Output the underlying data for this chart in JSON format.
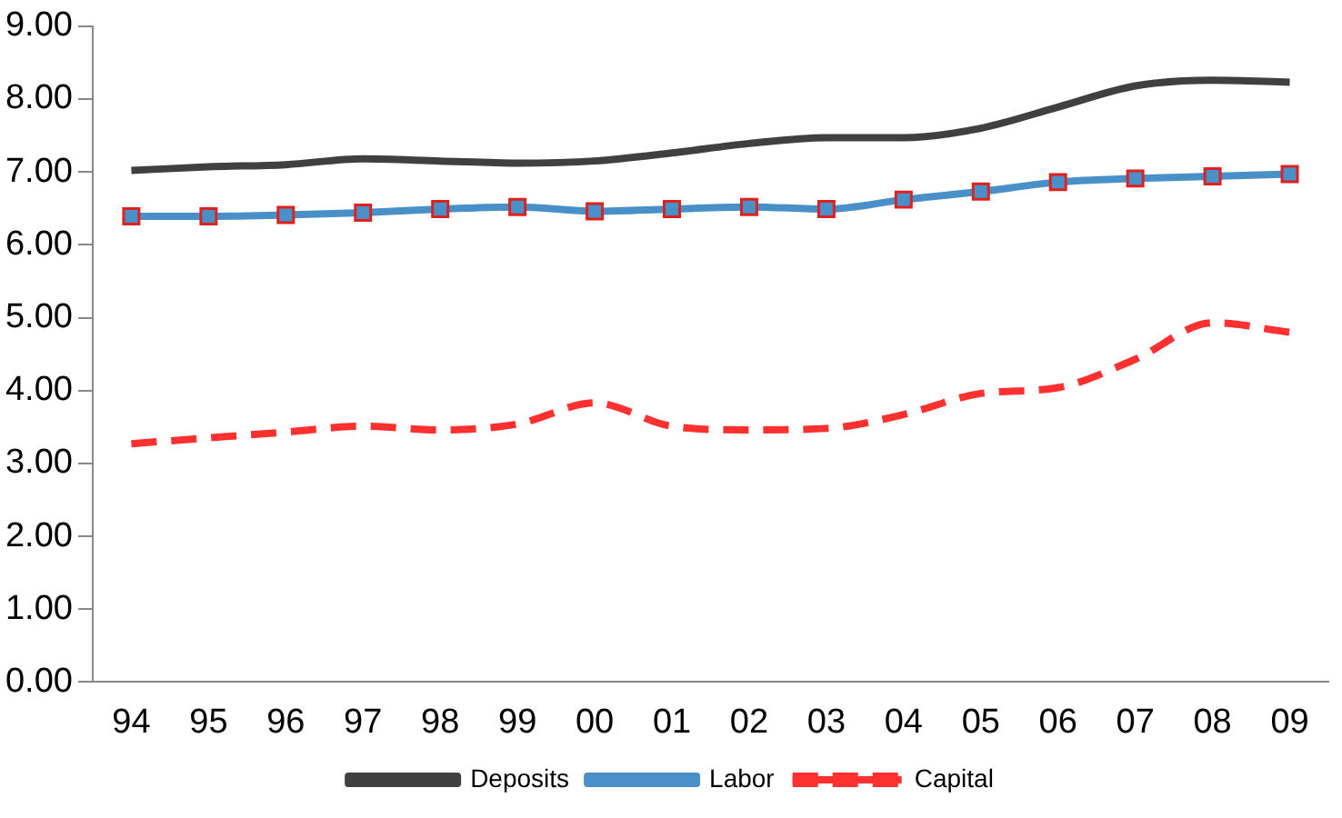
{
  "chart_data": {
    "type": "line",
    "categories": [
      "94",
      "95",
      "96",
      "97",
      "98",
      "99",
      "00",
      "01",
      "02",
      "03",
      "04",
      "05",
      "06",
      "07",
      "08",
      "09"
    ],
    "series": [
      {
        "name": "Deposits",
        "color": "#404040",
        "line_style": "solid",
        "marker": "none",
        "values": [
          7.02,
          7.07,
          7.1,
          7.18,
          7.15,
          7.12,
          7.15,
          7.26,
          7.39,
          7.47,
          7.47,
          7.6,
          7.89,
          8.18,
          8.26,
          8.23
        ]
      },
      {
        "name": "Labor",
        "color": "#4a90c8",
        "line_style": "solid",
        "marker": "square",
        "values": [
          6.39,
          6.39,
          6.41,
          6.44,
          6.49,
          6.52,
          6.46,
          6.49,
          6.52,
          6.49,
          6.62,
          6.73,
          6.86,
          6.91,
          6.94,
          6.97
        ]
      },
      {
        "name": "Capital",
        "color": "#ff3030",
        "line_style": "dashed",
        "marker": "none",
        "values": [
          3.27,
          3.35,
          3.43,
          3.51,
          3.46,
          3.54,
          3.83,
          3.51,
          3.46,
          3.48,
          3.67,
          3.96,
          4.04,
          4.43,
          4.93,
          4.8
        ]
      }
    ],
    "ylim": [
      0,
      9
    ],
    "yticks": [
      {
        "value": 0,
        "label": "0.00"
      },
      {
        "value": 1,
        "label": "1.00"
      },
      {
        "value": 2,
        "label": "2.00"
      },
      {
        "value": 3,
        "label": "3.00"
      },
      {
        "value": 4,
        "label": "4.00"
      },
      {
        "value": 5,
        "label": "5.00"
      },
      {
        "value": 6,
        "label": "6.00"
      },
      {
        "value": 7,
        "label": "7.00"
      },
      {
        "value": 8,
        "label": "8.00"
      },
      {
        "value": 9,
        "label": "9.00"
      }
    ],
    "grid": false,
    "legend": "bottom"
  }
}
